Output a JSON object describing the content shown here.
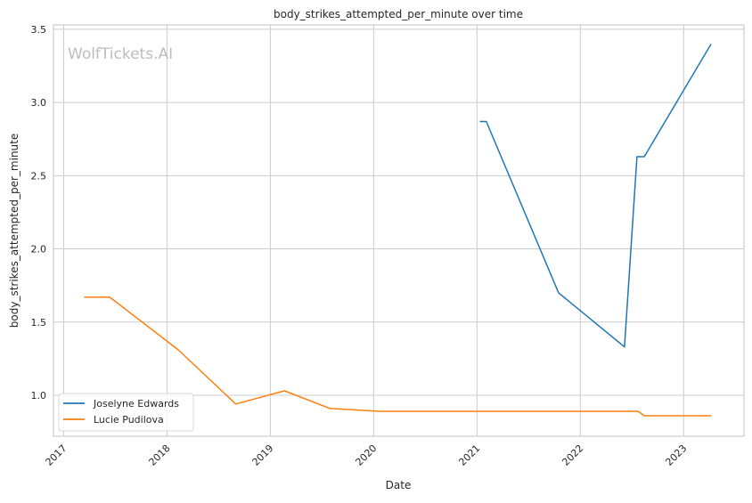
{
  "chart_data": {
    "type": "line",
    "title": "body_strikes_attempted_per_minute over time",
    "xlabel": "Date",
    "ylabel": "body_strikes_attempted_per_minute",
    "watermark": "WolfTickets.AI",
    "xlim": [
      "2016-11-26",
      "2023-08-02"
    ],
    "ylim": [
      0.72,
      3.53
    ],
    "x_ticks": [
      "2017",
      "2018",
      "2019",
      "2020",
      "2021",
      "2022",
      "2023"
    ],
    "y_ticks": [
      "1.0",
      "1.5",
      "2.0",
      "2.5",
      "3.0",
      "3.5"
    ],
    "grid": true,
    "legend_position": "lower-left",
    "series": [
      {
        "name": "Joselyne Edwards",
        "color": "#1f77b4",
        "x": [
          "2021-01-11",
          "2021-02-03",
          "2021-10-16",
          "2022-06-06",
          "2022-07-20",
          "2022-08-15",
          "2023-04-08"
        ],
        "y": [
          2.87,
          2.87,
          1.7,
          1.33,
          2.63,
          2.63,
          3.4
        ]
      },
      {
        "name": "Lucie Pudilova",
        "color": "#ff7f0e",
        "x": [
          "2017-03-15",
          "2017-06-13",
          "2018-02-10",
          "2018-09-01",
          "2019-02-20",
          "2019-07-31",
          "2020-01-19",
          "2022-07-24",
          "2022-08-15",
          "2023-04-08"
        ],
        "y": [
          1.67,
          1.67,
          1.31,
          0.94,
          1.03,
          0.91,
          0.89,
          0.89,
          0.86,
          0.86
        ]
      }
    ]
  }
}
